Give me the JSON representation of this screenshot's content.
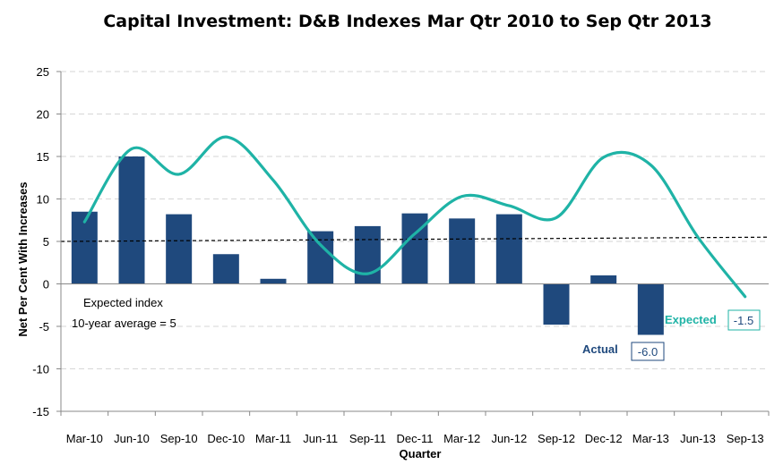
{
  "chart_data": {
    "type": "bar",
    "title": "Capital Investment: D&B Indexes Mar Qtr 2010 to Sep Qtr 2013",
    "xlabel": "Quarter",
    "ylabel": "Net Per Cent With Increases",
    "ylim": [
      -15,
      25
    ],
    "yticks": [
      -15,
      -10,
      -5,
      0,
      5,
      10,
      15,
      20,
      25
    ],
    "categories": [
      "Mar-10",
      "Jun-10",
      "Sep-10",
      "Dec-10",
      "Mar-11",
      "Jun-11",
      "Sep-11",
      "Dec-11",
      "Mar-12",
      "Jun-12",
      "Sep-12",
      "Dec-12",
      "Mar-13",
      "Jun-13",
      "Sep-13"
    ],
    "series": [
      {
        "name": "Actual",
        "type": "bar",
        "color": "#1f497d",
        "values": [
          8.5,
          15.0,
          8.2,
          3.5,
          0.6,
          6.2,
          6.8,
          8.3,
          7.7,
          8.2,
          -4.8,
          1.0,
          -6.0,
          null,
          null
        ]
      },
      {
        "name": "Expected",
        "type": "line",
        "smooth": true,
        "color": "#1fb3a6",
        "values": [
          7.3,
          15.9,
          12.9,
          17.3,
          12.2,
          4.6,
          1.2,
          5.9,
          10.3,
          9.2,
          7.8,
          14.9,
          14.0,
          5.5,
          -1.5
        ]
      }
    ],
    "reference_line": {
      "label": "10-year average = 5",
      "value": 5,
      "end_value": 5.5,
      "style": "dashed"
    },
    "annotations": {
      "expected_index_label": "Expected index",
      "average_label": "10-year average = 5",
      "actual_label": "Actual",
      "actual_value_label": "-6.0",
      "expected_label": "Expected",
      "expected_value_label": "-1.5"
    },
    "grid": true
  }
}
